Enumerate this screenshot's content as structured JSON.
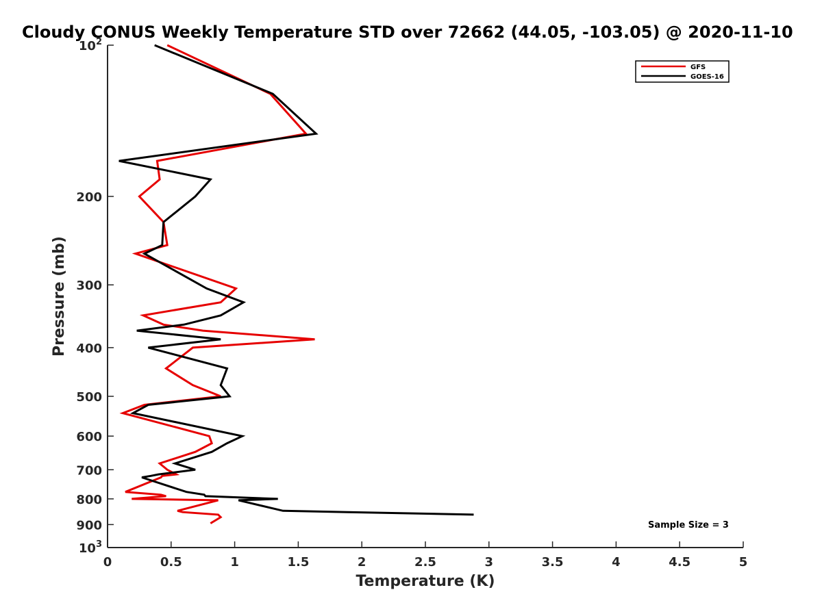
{
  "chart_data": {
    "type": "line",
    "title": "Cloudy CONUS Weekly Temperature STD over 72662 (44.05, -103.05) @ 2020-11-10",
    "xlabel": "Temperature (K)",
    "ylabel": "Pressure (mb)",
    "xlim": [
      0,
      5
    ],
    "ylim": [
      100,
      1000
    ],
    "y_scale": "log",
    "y_reversed": true,
    "x_ticks": [
      "0",
      "0.5",
      "1",
      "1.5",
      "2",
      "2.5",
      "3",
      "3.5",
      "4",
      "4.5",
      "5"
    ],
    "y_ticks": [
      {
        "base": "10",
        "exp": "2",
        "value": 100
      },
      {
        "label": "200",
        "value": 200
      },
      {
        "label": "300",
        "value": 300
      },
      {
        "label": "400",
        "value": 400
      },
      {
        "label": "500",
        "value": 500
      },
      {
        "label": "600",
        "value": 600
      },
      {
        "label": "700",
        "value": 700
      },
      {
        "label": "800",
        "value": 800
      },
      {
        "label": "900",
        "value": 900
      },
      {
        "base": "10",
        "exp": "3",
        "value": 1000
      }
    ],
    "legend_position": "top-right",
    "grid": false,
    "annotation": "Sample Size = 3",
    "series": [
      {
        "name": "GFS",
        "color": "#e60000",
        "points": [
          [
            0.47,
            100
          ],
          [
            1.28,
            125
          ],
          [
            1.56,
            150
          ],
          [
            0.39,
            170
          ],
          [
            0.41,
            185
          ],
          [
            0.25,
            200
          ],
          [
            0.44,
            225
          ],
          [
            0.47,
            250
          ],
          [
            0.22,
            260
          ],
          [
            1.01,
            305
          ],
          [
            0.89,
            325
          ],
          [
            0.28,
            345
          ],
          [
            0.44,
            360
          ],
          [
            0.75,
            370
          ],
          [
            1.63,
            385
          ],
          [
            0.67,
            400
          ],
          [
            0.46,
            440
          ],
          [
            0.67,
            475
          ],
          [
            0.89,
            500
          ],
          [
            0.29,
            520
          ],
          [
            0.12,
            540
          ],
          [
            0.8,
            600
          ],
          [
            0.82,
            620
          ],
          [
            0.69,
            645
          ],
          [
            0.41,
            680
          ],
          [
            0.47,
            700
          ],
          [
            0.54,
            715
          ],
          [
            0.43,
            720
          ],
          [
            0.42,
            725
          ],
          [
            0.14,
            775
          ],
          [
            0.42,
            785
          ],
          [
            0.46,
            790
          ],
          [
            0.19,
            800
          ],
          [
            0.87,
            805
          ],
          [
            0.55,
            845
          ],
          [
            0.59,
            850
          ],
          [
            0.87,
            860
          ],
          [
            0.89,
            870
          ],
          [
            0.81,
            895
          ]
        ]
      },
      {
        "name": "GOES-16",
        "color": "#000000",
        "points": [
          [
            0.37,
            100
          ],
          [
            1.3,
            125
          ],
          [
            1.64,
            150
          ],
          [
            0.09,
            170
          ],
          [
            0.81,
            185
          ],
          [
            0.69,
            200
          ],
          [
            0.44,
            225
          ],
          [
            0.43,
            250
          ],
          [
            0.29,
            260
          ],
          [
            0.78,
            305
          ],
          [
            1.07,
            325
          ],
          [
            0.89,
            345
          ],
          [
            0.6,
            360
          ],
          [
            0.23,
            370
          ],
          [
            0.89,
            385
          ],
          [
            0.32,
            400
          ],
          [
            0.94,
            440
          ],
          [
            0.89,
            475
          ],
          [
            0.96,
            500
          ],
          [
            0.32,
            520
          ],
          [
            0.2,
            540
          ],
          [
            1.06,
            600
          ],
          [
            0.94,
            620
          ],
          [
            0.82,
            645
          ],
          [
            0.53,
            680
          ],
          [
            0.69,
            700
          ],
          [
            0.4,
            715
          ],
          [
            0.34,
            720
          ],
          [
            0.27,
            725
          ],
          [
            0.62,
            775
          ],
          [
            0.76,
            785
          ],
          [
            0.77,
            790
          ],
          [
            1.34,
            800
          ],
          [
            1.03,
            805
          ],
          [
            1.38,
            845
          ],
          [
            1.89,
            850
          ],
          [
            2.88,
            860
          ]
        ]
      }
    ]
  }
}
